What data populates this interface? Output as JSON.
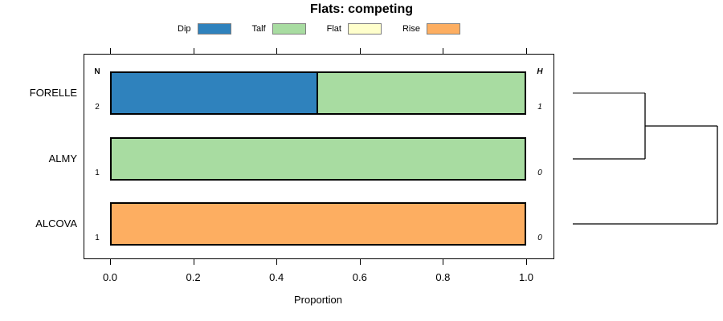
{
  "title": "Flats: competing",
  "chart_data": {
    "type": "bar",
    "orientation": "horizontal",
    "stacked": true,
    "title": "Flats: competing",
    "xlabel": "Proportion",
    "ylabel": "",
    "xlim": [
      0.0,
      1.0
    ],
    "xticks": [
      "0.0",
      "0.2",
      "0.4",
      "0.6",
      "0.8",
      "1.0"
    ],
    "grid": false,
    "legend_position": "top",
    "categories": [
      "FORELLE",
      "ALMY",
      "ALCOVA"
    ],
    "series": [
      {
        "name": "Dip",
        "color": "#2F82BD",
        "values": [
          0.5,
          0.0,
          0.0
        ]
      },
      {
        "name": "Talf",
        "color": "#A8DCA1",
        "values": [
          0.5,
          1.0,
          0.0
        ]
      },
      {
        "name": "Flat",
        "color": "#FFFFCC",
        "values": [
          0.0,
          0.0,
          0.0
        ]
      },
      {
        "name": "Rise",
        "color": "#FDAE61",
        "values": [
          0.0,
          0.0,
          1.0
        ]
      }
    ],
    "n_column": {
      "header": "N",
      "values": [
        "2",
        "1",
        "1"
      ]
    },
    "h_column": {
      "header": "H",
      "values": [
        "1",
        "0",
        "0"
      ]
    }
  },
  "legend": {
    "items": [
      {
        "label": "Dip",
        "color": "#2F82BD"
      },
      {
        "label": "Talf",
        "color": "#A8DCA1"
      },
      {
        "label": "Flat",
        "color": "#FFFFCC"
      },
      {
        "label": "Rise",
        "color": "#FDAE61"
      }
    ],
    "swatch_border_color": "#7f7f7f"
  },
  "dendrogram": {
    "leaves": [
      "FORELLE",
      "ALMY",
      "ALCOVA"
    ],
    "leaf_line_colors": [
      "#888888",
      "#000000",
      "#000000"
    ],
    "merges": [
      {
        "members": [
          0,
          1
        ],
        "height": 1
      },
      {
        "members": [
          "merge0",
          2
        ],
        "height": 2
      }
    ],
    "line_color": "#000000"
  }
}
